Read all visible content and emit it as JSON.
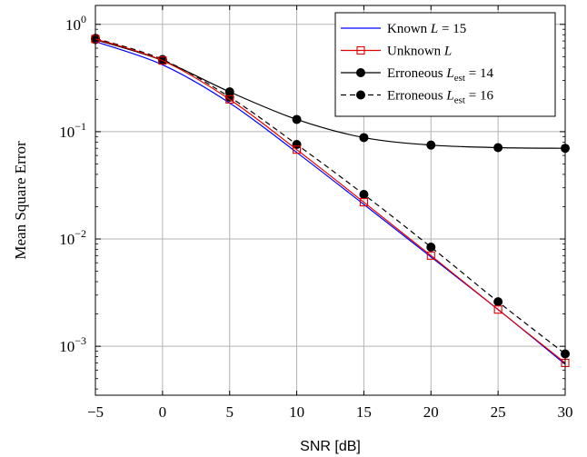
{
  "chart_data": {
    "type": "line",
    "title": "",
    "xlabel": "SNR [dB]",
    "ylabel": "Mean Square Error",
    "yscale": "log",
    "xlim": [
      -5,
      30
    ],
    "ylim": [
      0.00035,
      1.5
    ],
    "grid": true,
    "legend_position": "top-right",
    "x_ticks": [
      -5,
      0,
      5,
      10,
      15,
      20,
      25,
      30
    ],
    "x_tick_labels": [
      "−5",
      "0",
      "5",
      "10",
      "15",
      "20",
      "25",
      "30"
    ],
    "y_ticks": [
      1,
      0.1,
      0.01,
      0.001
    ],
    "y_tick_labels": [
      {
        "base": "10",
        "exp": "0"
      },
      {
        "base": "10",
        "exp": "−1"
      },
      {
        "base": "10",
        "exp": "−2"
      },
      {
        "base": "10",
        "exp": "−3"
      }
    ],
    "series": [
      {
        "name": "Known L = 15",
        "legend_label": {
          "prefix": "Known ",
          "italic": "L",
          "sub": "",
          "suffix": " = 15"
        },
        "color": "#0000ff",
        "dash": "",
        "marker": "none",
        "x": [
          -5,
          0,
          5,
          10,
          15,
          20,
          25,
          30
        ],
        "y": [
          0.69,
          0.42,
          0.185,
          0.064,
          0.021,
          0.0068,
          0.0022,
          0.00068
        ]
      },
      {
        "name": "Unknown L",
        "legend_label": {
          "prefix": "Unknown ",
          "italic": "L",
          "sub": "",
          "suffix": ""
        },
        "color": "#e00000",
        "dash": "",
        "marker": "square",
        "x": [
          -5,
          0,
          5,
          10,
          15,
          20,
          25,
          30
        ],
        "y": [
          0.73,
          0.46,
          0.2,
          0.068,
          0.022,
          0.007,
          0.0022,
          0.0007
        ]
      },
      {
        "name": "Erroneous L_est = 14",
        "legend_label": {
          "prefix": "Erroneous ",
          "italic": "L",
          "sub": "est",
          "suffix": " = 14"
        },
        "color": "#000000",
        "dash": "",
        "marker": "circle",
        "x": [
          -5,
          0,
          5,
          10,
          15,
          20,
          25,
          30
        ],
        "y": [
          0.72,
          0.46,
          0.235,
          0.13,
          0.088,
          0.075,
          0.071,
          0.07
        ]
      },
      {
        "name": "Erroneous L_est = 16",
        "legend_label": {
          "prefix": "Erroneous ",
          "italic": "L",
          "sub": "est",
          "suffix": " = 16"
        },
        "color": "#000000",
        "dash": "6,4",
        "marker": "circle",
        "x": [
          -5,
          0,
          5,
          10,
          15,
          20,
          25,
          30
        ],
        "y": [
          0.74,
          0.47,
          0.21,
          0.076,
          0.026,
          0.0084,
          0.0026,
          0.00085
        ]
      }
    ]
  }
}
